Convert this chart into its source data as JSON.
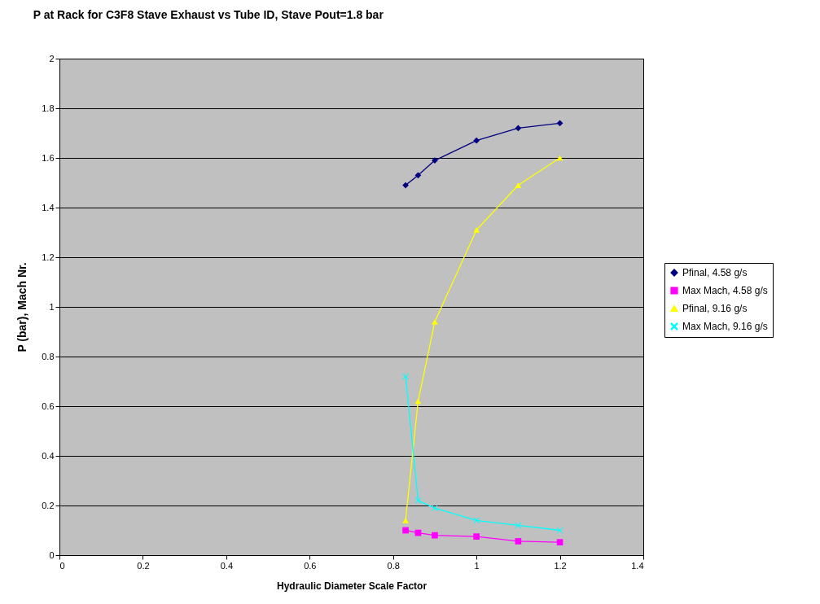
{
  "chart_data": {
    "type": "line",
    "title": "P at Rack for C3F8 Stave Exhaust vs Tube ID, Stave Pout=1.8 bar",
    "xlabel": "Hydraulic Diameter Scale Factor",
    "ylabel": "P (bar), Mach Nr.",
    "x": [
      0.83,
      0.86,
      0.9,
      1.0,
      1.1,
      1.2
    ],
    "series": [
      {
        "name": "Pfinal, 4.58 g/s",
        "color": "#000080",
        "marker": "diamond",
        "values": [
          1.49,
          1.53,
          1.59,
          1.67,
          1.72,
          1.74
        ]
      },
      {
        "name": "Max Mach, 4.58 g/s",
        "color": "#ff00ff",
        "marker": "square",
        "values": [
          0.1,
          0.09,
          0.08,
          0.075,
          0.056,
          0.052
        ]
      },
      {
        "name": "Pfinal, 9.16 g/s",
        "color": "#ffff00",
        "marker": "triangle",
        "values": [
          0.14,
          0.62,
          0.94,
          1.31,
          1.49,
          1.6
        ]
      },
      {
        "name": "Max Mach, 9.16 g/s",
        "color": "#00ffff",
        "marker": "cross",
        "values": [
          0.72,
          0.22,
          0.19,
          0.14,
          0.12,
          0.1
        ]
      }
    ],
    "xlim": [
      0,
      1.4
    ],
    "xticks": [
      0,
      0.2,
      0.4,
      0.6,
      0.8,
      1,
      1.2,
      1.4
    ],
    "ylim": [
      0,
      2
    ],
    "yticks": [
      0,
      0.2,
      0.4,
      0.6,
      0.8,
      1,
      1.2,
      1.4,
      1.6,
      1.8,
      2
    ],
    "grid": "y",
    "legend": "right"
  }
}
